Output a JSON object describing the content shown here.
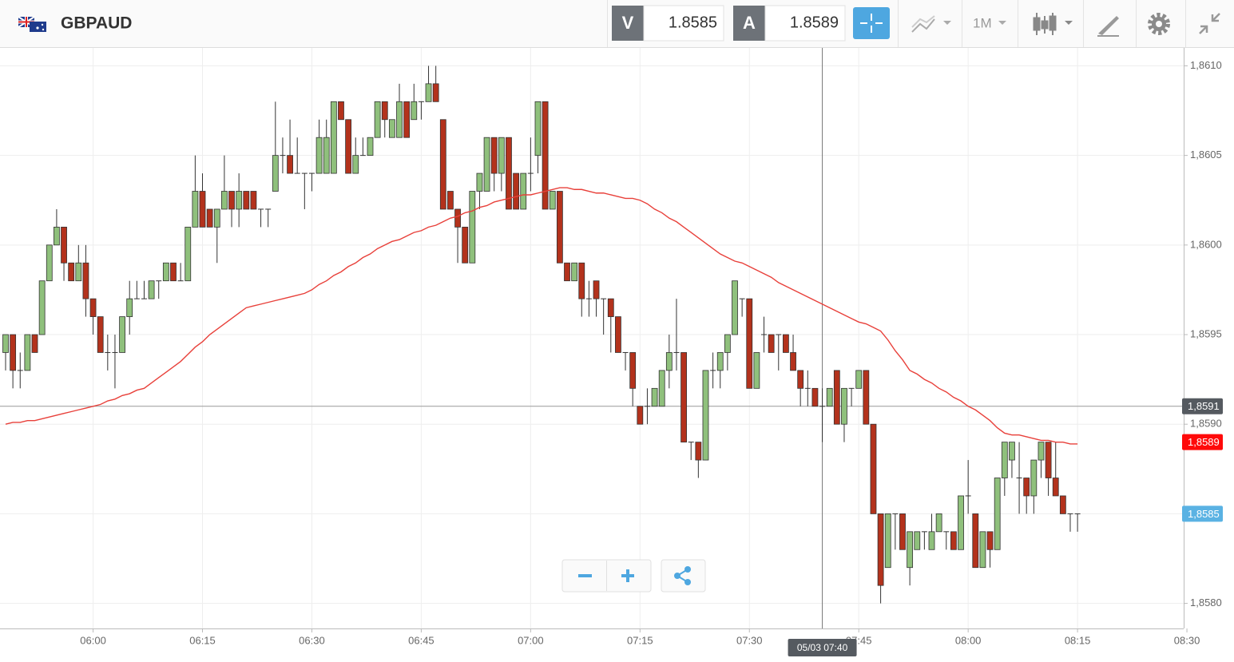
{
  "header": {
    "symbol": "GBPAUD",
    "bid_label": "V",
    "bid": 1.8585,
    "ask_label": "A",
    "ask": 1.8589,
    "timeframe": "1M"
  },
  "chart_data": {
    "type": "candlestick",
    "x": [
      "05:48",
      "05:49",
      "05:50",
      "05:51",
      "05:52",
      "05:53",
      "05:54",
      "05:55",
      "05:56",
      "05:57",
      "05:58",
      "05:59",
      "06:00",
      "06:01",
      "06:02",
      "06:03",
      "06:04",
      "06:05",
      "06:06",
      "06:07",
      "06:08",
      "06:09",
      "06:10",
      "06:11",
      "06:12",
      "06:13",
      "06:14",
      "06:15",
      "06:16",
      "06:17",
      "06:18",
      "06:19",
      "06:20",
      "06:21",
      "06:22",
      "06:23",
      "06:24",
      "06:25",
      "06:26",
      "06:27",
      "06:28",
      "06:29",
      "06:30",
      "06:31",
      "06:32",
      "06:33",
      "06:34",
      "06:35",
      "06:36",
      "06:37",
      "06:38",
      "06:39",
      "06:40",
      "06:41",
      "06:42",
      "06:43",
      "06:44",
      "06:45",
      "06:46",
      "06:47",
      "06:48",
      "06:49",
      "06:50",
      "06:51",
      "06:52",
      "06:53",
      "06:54",
      "06:55",
      "06:56",
      "06:57",
      "06:58",
      "06:59",
      "07:00",
      "07:01",
      "07:02",
      "07:03",
      "07:04",
      "07:05",
      "07:06",
      "07:07",
      "07:08",
      "07:09",
      "07:10",
      "07:11",
      "07:12",
      "07:13",
      "07:14",
      "07:15",
      "07:16",
      "07:17",
      "07:18",
      "07:19",
      "07:20",
      "07:21",
      "07:22",
      "07:23",
      "07:24",
      "07:25",
      "07:26",
      "07:27",
      "07:28",
      "07:29",
      "07:30",
      "07:31",
      "07:32",
      "07:33",
      "07:34",
      "07:35",
      "07:36",
      "07:37",
      "07:38",
      "07:39",
      "07:40",
      "07:41",
      "07:42",
      "07:43",
      "07:44",
      "07:45",
      "07:46",
      "07:47",
      "07:48",
      "07:49",
      "07:50",
      "07:51",
      "07:52",
      "07:53",
      "07:54",
      "07:55",
      "07:56",
      "07:57",
      "07:58",
      "07:59",
      "08:00",
      "08:01",
      "08:02",
      "08:03",
      "08:04",
      "08:05",
      "08:06",
      "08:07",
      "08:08",
      "08:09",
      "08:10",
      "08:11",
      "08:12",
      "08:13",
      "08:14",
      "08:15"
    ],
    "open": [
      1.8594,
      1.8595,
      1.8593,
      1.8593,
      1.8595,
      1.8595,
      1.8598,
      1.86,
      1.8601,
      1.8599,
      1.8598,
      1.8599,
      1.8597,
      1.8596,
      1.8594,
      1.8594,
      1.8594,
      1.8596,
      1.8597,
      1.8597,
      1.8597,
      1.8598,
      1.8598,
      1.8599,
      1.8598,
      1.8598,
      1.8601,
      1.8603,
      1.8602,
      1.8601,
      1.8602,
      1.8603,
      1.8602,
      1.8603,
      1.8603,
      1.8602,
      1.8602,
      1.8603,
      1.8605,
      1.8605,
      1.8604,
      1.8604,
      1.8604,
      1.8604,
      1.8604,
      1.8604,
      1.8608,
      1.8607,
      1.8604,
      1.8605,
      1.8605,
      1.8606,
      1.8608,
      1.8606,
      1.8606,
      1.8608,
      1.8607,
      1.8608,
      1.8608,
      1.8609,
      1.8607,
      1.8603,
      1.8602,
      1.8601,
      1.8599,
      1.8603,
      1.8603,
      1.8606,
      1.8604,
      1.8606,
      1.8604,
      1.8602,
      1.8604,
      1.8605,
      1.8608,
      1.8602,
      1.8603,
      1.8599,
      1.8598,
      1.8599,
      1.8597,
      1.8598,
      1.8597,
      1.8597,
      1.8596,
      1.8594,
      1.8594,
      1.8591,
      1.8591,
      1.8591,
      1.8591,
      1.8593,
      1.8594,
      1.8594,
      1.8589,
      1.8589,
      1.8588,
      1.8593,
      1.8593,
      1.8594,
      1.8595,
      1.8597,
      1.8597,
      1.8592,
      1.8595,
      1.8595,
      1.8595,
      1.8595,
      1.8594,
      1.8593,
      1.8592,
      1.8592,
      1.8591,
      1.8591,
      1.8593,
      1.859,
      1.8592,
      1.8592,
      1.8593,
      1.859,
      1.8585,
      1.8582,
      1.8585,
      1.8585,
      1.8582,
      1.8583,
      1.8584,
      1.8583,
      1.8584,
      1.8584,
      1.8584,
      1.8583,
      1.8586,
      1.8585,
      1.8582,
      1.8584,
      1.8583,
      1.8587,
      1.8588,
      1.8587,
      1.8587,
      1.8586,
      1.8588,
      1.8589,
      1.8587,
      1.8586,
      1.8585,
      1.8585
    ],
    "high": [
      1.8595,
      1.8595,
      1.8594,
      1.8595,
      1.8595,
      1.8598,
      1.86,
      1.8602,
      1.8601,
      1.8599,
      1.86,
      1.86,
      1.8597,
      1.8596,
      1.8595,
      1.8595,
      1.8596,
      1.8598,
      1.8598,
      1.8598,
      1.8598,
      1.8598,
      1.8599,
      1.8599,
      1.8599,
      1.8601,
      1.8605,
      1.8604,
      1.8602,
      1.8602,
      1.8605,
      1.8603,
      1.8604,
      1.8603,
      1.8603,
      1.8602,
      1.8602,
      1.8608,
      1.8606,
      1.8607,
      1.8606,
      1.8604,
      1.8604,
      1.8607,
      1.8607,
      1.8608,
      1.8608,
      1.8607,
      1.8606,
      1.8606,
      1.8606,
      1.8608,
      1.8608,
      1.8607,
      1.8609,
      1.8608,
      1.8609,
      1.8608,
      1.861,
      1.861,
      1.8607,
      1.8603,
      1.8602,
      1.8601,
      1.8603,
      1.8604,
      1.8606,
      1.8606,
      1.8606,
      1.8606,
      1.8604,
      1.8604,
      1.8606,
      1.8608,
      1.8608,
      1.8603,
      1.8603,
      1.8599,
      1.8599,
      1.8599,
      1.8598,
      1.8598,
      1.8597,
      1.8597,
      1.8596,
      1.8594,
      1.8594,
      1.8591,
      1.8592,
      1.8592,
      1.8593,
      1.8595,
      1.8597,
      1.8594,
      1.8589,
      1.8589,
      1.8593,
      1.8594,
      1.8594,
      1.8595,
      1.8598,
      1.8597,
      1.8597,
      1.8594,
      1.8596,
      1.8595,
      1.8595,
      1.8595,
      1.8595,
      1.8593,
      1.8593,
      1.8592,
      1.8592,
      1.8592,
      1.8593,
      1.8592,
      1.8592,
      1.8593,
      1.8593,
      1.859,
      1.8585,
      1.8585,
      1.8585,
      1.8585,
      1.8584,
      1.8584,
      1.8584,
      1.8585,
      1.8585,
      1.8584,
      1.8584,
      1.8586,
      1.8588,
      1.8585,
      1.8584,
      1.8584,
      1.8587,
      1.8589,
      1.8589,
      1.8589,
      1.8587,
      1.8588,
      1.8589,
      1.8589,
      1.8589,
      1.8586,
      1.8585,
      1.8585
    ],
    "low": [
      1.8593,
      1.8592,
      1.8592,
      1.8593,
      1.8594,
      1.8595,
      1.8598,
      1.86,
      1.8598,
      1.8598,
      1.8598,
      1.8596,
      1.8595,
      1.8594,
      1.8593,
      1.8592,
      1.8594,
      1.8595,
      1.8597,
      1.8597,
      1.8597,
      1.8597,
      1.8598,
      1.8598,
      1.8598,
      1.8598,
      1.8601,
      1.8601,
      1.8601,
      1.8599,
      1.8602,
      1.8601,
      1.8601,
      1.8602,
      1.8602,
      1.8601,
      1.8601,
      1.8603,
      1.8604,
      1.8604,
      1.8604,
      1.8602,
      1.8603,
      1.8604,
      1.8604,
      1.8604,
      1.8607,
      1.8604,
      1.8604,
      1.8605,
      1.8605,
      1.8606,
      1.8606,
      1.8606,
      1.8606,
      1.8606,
      1.8607,
      1.8607,
      1.8608,
      1.8608,
      1.8602,
      1.8602,
      1.8599,
      1.8599,
      1.8599,
      1.8602,
      1.8603,
      1.8603,
      1.8603,
      1.8602,
      1.8602,
      1.8602,
      1.8603,
      1.8604,
      1.8602,
      1.8602,
      1.8599,
      1.8598,
      1.8598,
      1.8596,
      1.8596,
      1.8596,
      1.8595,
      1.8594,
      1.8594,
      1.8593,
      1.8591,
      1.859,
      1.859,
      1.8591,
      1.8591,
      1.8592,
      1.8593,
      1.8589,
      1.8588,
      1.8587,
      1.8588,
      1.8592,
      1.8592,
      1.8593,
      1.8595,
      1.8596,
      1.8592,
      1.8592,
      1.8594,
      1.8594,
      1.8593,
      1.8594,
      1.8593,
      1.8591,
      1.8591,
      1.8591,
      1.8589,
      1.8591,
      1.859,
      1.8589,
      1.8591,
      1.8592,
      1.859,
      1.8585,
      1.858,
      1.8582,
      1.8583,
      1.8583,
      1.8581,
      1.8583,
      1.8583,
      1.8583,
      1.8584,
      1.8583,
      1.8583,
      1.8583,
      1.8585,
      1.8582,
      1.8582,
      1.8582,
      1.8583,
      1.8586,
      1.8587,
      1.8585,
      1.8585,
      1.8585,
      1.8587,
      1.8586,
      1.8586,
      1.8585,
      1.8584,
      1.8584
    ],
    "close": [
      1.8595,
      1.8593,
      1.8593,
      1.8595,
      1.8594,
      1.8598,
      1.86,
      1.8601,
      1.8599,
      1.8598,
      1.8599,
      1.8597,
      1.8596,
      1.8594,
      1.8594,
      1.8594,
      1.8596,
      1.8597,
      1.8597,
      1.8597,
      1.8598,
      1.8598,
      1.8599,
      1.8598,
      1.8598,
      1.8601,
      1.8603,
      1.8601,
      1.8601,
      1.8602,
      1.8603,
      1.8602,
      1.8603,
      1.8602,
      1.8602,
      1.8602,
      1.8602,
      1.8605,
      1.8605,
      1.8604,
      1.8604,
      1.8604,
      1.8604,
      1.8606,
      1.8606,
      1.8608,
      1.8607,
      1.8604,
      1.8605,
      1.8605,
      1.8606,
      1.8608,
      1.8607,
      1.8607,
      1.8608,
      1.8606,
      1.8608,
      1.8608,
      1.8609,
      1.8608,
      1.8602,
      1.8602,
      1.8601,
      1.8599,
      1.8603,
      1.8604,
      1.8606,
      1.8604,
      1.8606,
      1.8602,
      1.8602,
      1.8604,
      1.8604,
      1.8608,
      1.8602,
      1.8603,
      1.8599,
      1.8598,
      1.8599,
      1.8597,
      1.8597,
      1.8597,
      1.8597,
      1.8596,
      1.8594,
      1.8594,
      1.8592,
      1.859,
      1.8591,
      1.8592,
      1.8593,
      1.8594,
      1.8594,
      1.8589,
      1.8589,
      1.8588,
      1.8593,
      1.8593,
      1.8594,
      1.8595,
      1.8598,
      1.8597,
      1.8592,
      1.8594,
      1.8595,
      1.8594,
      1.8595,
      1.8594,
      1.8593,
      1.8592,
      1.8592,
      1.8591,
      1.8591,
      1.8592,
      1.859,
      1.8592,
      1.8592,
      1.8593,
      1.859,
      1.8585,
      1.8581,
      1.8585,
      1.8585,
      1.8583,
      1.8584,
      1.8584,
      1.8584,
      1.8584,
      1.8585,
      1.8584,
      1.8583,
      1.8586,
      1.8586,
      1.8582,
      1.8584,
      1.8583,
      1.8587,
      1.8589,
      1.8589,
      1.8587,
      1.8586,
      1.8588,
      1.8589,
      1.8587,
      1.8586,
      1.8585,
      1.8585,
      1.8585
    ],
    "up_color": "#8fc07c",
    "down_color": "#b3321c",
    "ma": {
      "color": "#e8403a",
      "values": [
        1.859,
        1.85901,
        1.85901,
        1.85902,
        1.85902,
        1.85903,
        1.85904,
        1.85905,
        1.85906,
        1.85907,
        1.85908,
        1.85909,
        1.8591,
        1.85911,
        1.85913,
        1.85914,
        1.85916,
        1.85917,
        1.85919,
        1.8592,
        1.85923,
        1.85926,
        1.85929,
        1.85932,
        1.85935,
        1.85939,
        1.85943,
        1.85946,
        1.8595,
        1.85953,
        1.85956,
        1.85959,
        1.85962,
        1.85965,
        1.85966,
        1.85967,
        1.85968,
        1.85969,
        1.8597,
        1.85971,
        1.85972,
        1.85973,
        1.85975,
        1.85978,
        1.8598,
        1.85983,
        1.85985,
        1.85988,
        1.8599,
        1.85993,
        1.85995,
        1.85998,
        1.86,
        1.86002,
        1.86003,
        1.86005,
        1.86007,
        1.86008,
        1.8601,
        1.86011,
        1.86013,
        1.86015,
        1.86016,
        1.86018,
        1.86019,
        1.86021,
        1.86022,
        1.86024,
        1.86025,
        1.86026,
        1.86027,
        1.86028,
        1.86028,
        1.86029,
        1.8603,
        1.86031,
        1.86032,
        1.86032,
        1.86031,
        1.86031,
        1.8603,
        1.86029,
        1.86029,
        1.86028,
        1.86027,
        1.86026,
        1.86026,
        1.86025,
        1.86023,
        1.8602,
        1.86018,
        1.86015,
        1.86013,
        1.8601,
        1.86007,
        1.86004,
        1.86001,
        1.85998,
        1.85995,
        1.85993,
        1.85991,
        1.8599,
        1.85988,
        1.85986,
        1.85984,
        1.85982,
        1.85979,
        1.85977,
        1.85975,
        1.85973,
        1.85971,
        1.85969,
        1.85967,
        1.85965,
        1.85963,
        1.85961,
        1.85959,
        1.85957,
        1.85956,
        1.85954,
        1.85952,
        1.85947,
        1.85941,
        1.85936,
        1.8593,
        1.85928,
        1.85925,
        1.85923,
        1.8592,
        1.85918,
        1.85915,
        1.85913,
        1.8591,
        1.85908,
        1.85905,
        1.85902,
        1.85898,
        1.85895,
        1.85894,
        1.85894,
        1.85893,
        1.85892,
        1.85891,
        1.85891,
        1.8589,
        1.8589,
        1.85889,
        1.85889
      ]
    },
    "ylim": [
      1.85786,
      1.8611
    ],
    "yticks": [
      {
        "value": 1.861,
        "label": "1,8610"
      },
      {
        "value": 1.8605,
        "label": "1,8605"
      },
      {
        "value": 1.86,
        "label": "1,8600"
      },
      {
        "value": 1.8595,
        "label": "1,8595"
      },
      {
        "value": 1.859,
        "label": "1,8590"
      },
      {
        "value": 1.8585,
        "label": "1,8585"
      },
      {
        "value": 1.858,
        "label": "1,8580"
      }
    ],
    "xticks": [
      "06:00",
      "06:15",
      "06:30",
      "06:45",
      "07:00",
      "07:15",
      "07:30",
      "07:45",
      "08:00",
      "08:15",
      "08:30"
    ],
    "grid": true,
    "crosshair": {
      "x_label": "05/03 07:40",
      "y": {
        "value": 1.8591,
        "label": "1,8591"
      }
    },
    "ma_marker": {
      "value": 1.8589,
      "label": "1,8589"
    },
    "last_price": {
      "value": 1.8585,
      "label": "1,8585"
    }
  }
}
